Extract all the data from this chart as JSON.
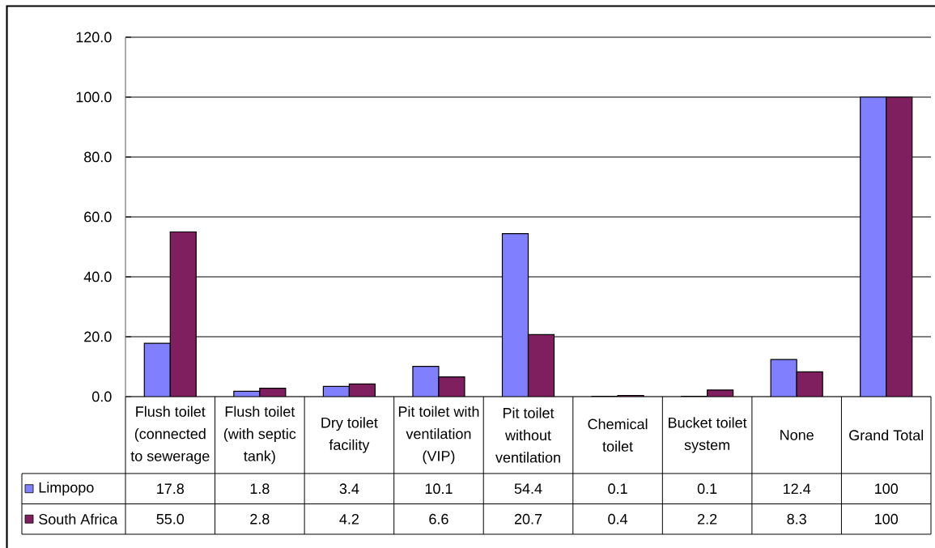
{
  "chart_data": {
    "type": "bar",
    "categories": [
      "Flush toilet (connected to sewerage",
      "Flush toilet (with septic tank)",
      "Dry toilet facility",
      "Pit toilet with ventilation (VIP)",
      "Pit toilet without ventilation",
      "Chemical toilet",
      "Bucket toilet system",
      "None",
      "Grand Total"
    ],
    "series": [
      {
        "name": "Limpopo",
        "color": "#8080ff",
        "values": [
          17.8,
          1.8,
          3.4,
          10.1,
          54.4,
          0.1,
          0.1,
          12.4,
          100
        ],
        "value_labels": [
          "17.8",
          "1.8",
          "3.4",
          "10.1",
          "54.4",
          "0.1",
          "0.1",
          "12.4",
          "100"
        ]
      },
      {
        "name": "South Africa",
        "color": "#7f1f5f",
        "values": [
          55.0,
          2.8,
          4.2,
          6.6,
          20.7,
          0.4,
          2.2,
          8.3,
          100
        ],
        "value_labels": [
          "55.0",
          "2.8",
          "4.2",
          "6.6",
          "20.7",
          "0.4",
          "2.2",
          "8.3",
          "100"
        ]
      }
    ],
    "ylim": [
      0,
      120
    ],
    "yticks": [
      {
        "value": 0,
        "label": "0.0"
      },
      {
        "value": 20,
        "label": "20.0"
      },
      {
        "value": 40,
        "label": "40.0"
      },
      {
        "value": 60,
        "label": "60.0"
      },
      {
        "value": 80,
        "label": "80.0"
      },
      {
        "value": 100,
        "label": "100.0"
      },
      {
        "value": 120,
        "label": "120.0"
      }
    ],
    "grid": "y",
    "legend": "bottom left"
  }
}
